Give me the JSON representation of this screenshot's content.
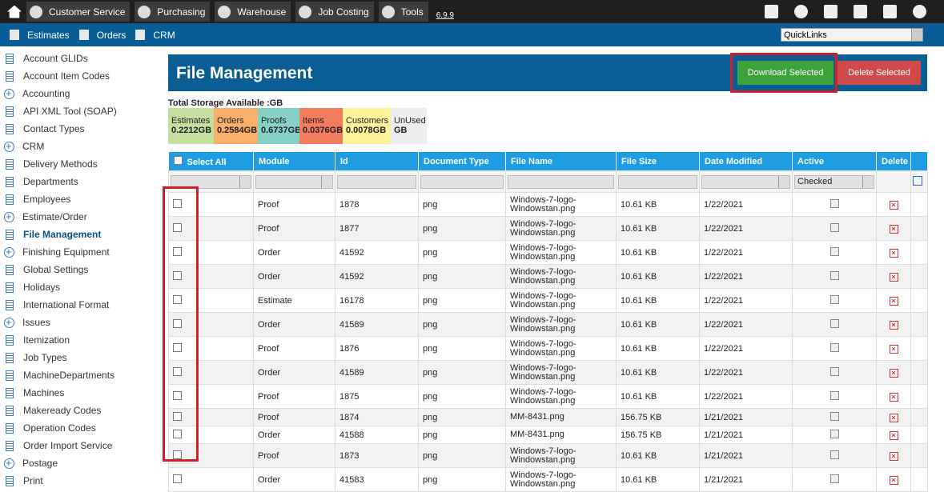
{
  "topnav": {
    "items": [
      "Customer Service",
      "Purchasing",
      "Warehouse",
      "Job Costing",
      "Tools"
    ],
    "version": "6.9.9"
  },
  "subnav": {
    "items": [
      "Estimates",
      "Orders",
      "CRM"
    ],
    "quicklinks": "QuickLinks"
  },
  "sidebar": {
    "items": [
      "Account GLIDs",
      "Account Item Codes",
      "Accounting",
      "API XML Tool (SOAP)",
      "Contact Types",
      "CRM",
      "Delivery Methods",
      "Departments",
      "Employees",
      "Estimate/Order",
      "File Management",
      "Finishing Equipment",
      "Global Settings",
      "Holidays",
      "International Format",
      "Issues",
      "Itemization",
      "Job Types",
      "MachineDepartments",
      "Machines",
      "Makeready Codes",
      "Operation Codes",
      "Order Import Service",
      "Postage",
      "Print"
    ]
  },
  "header": {
    "title": "File Management",
    "download": "Download Selected",
    "delete": "Delete Selected"
  },
  "storage": {
    "label": "Total Storage Available :GB",
    "cells": [
      {
        "name": "Estimates",
        "value": "0.2212GB"
      },
      {
        "name": "Orders",
        "value": "0.2584GB"
      },
      {
        "name": "Proofs",
        "value": "0.6737GB"
      },
      {
        "name": "Items",
        "value": "0.0376GB"
      },
      {
        "name": "Customers",
        "value": "0.0078GB"
      },
      {
        "name": "UnUsed",
        "value": "GB"
      }
    ]
  },
  "table": {
    "headers": [
      "Select All",
      "Module",
      "Id",
      "Document Type",
      "File Name",
      "File Size",
      "Date Modified",
      "Active",
      "Delete"
    ],
    "active_filter": "Checked",
    "rows": [
      [
        "Proof",
        "1878",
        "png",
        "Windows-7-logo-Windowstan.png",
        "10.61 KB",
        "1/22/2021"
      ],
      [
        "Proof",
        "1877",
        "png",
        "Windows-7-logo-Windowstan.png",
        "10.61 KB",
        "1/22/2021"
      ],
      [
        "Order",
        "41592",
        "png",
        "Windows-7-logo-Windowstan.png",
        "10.61 KB",
        "1/22/2021"
      ],
      [
        "Order",
        "41592",
        "png",
        "Windows-7-logo-Windowstan.png",
        "10.61 KB",
        "1/22/2021"
      ],
      [
        "Estimate",
        "16178",
        "png",
        "Windows-7-logo-Windowstan.png",
        "10.61 KB",
        "1/22/2021"
      ],
      [
        "Order",
        "41589",
        "png",
        "Windows-7-logo-Windowstan.png",
        "10.61 KB",
        "1/22/2021"
      ],
      [
        "Proof",
        "1876",
        "png",
        "Windows-7-logo-Windowstan.png",
        "10.61 KB",
        "1/22/2021"
      ],
      [
        "Order",
        "41589",
        "png",
        "Windows-7-logo-Windowstan.png",
        "10.61 KB",
        "1/22/2021"
      ],
      [
        "Proof",
        "1875",
        "png",
        "Windows-7-logo-Windowstan.png",
        "10.61 KB",
        "1/22/2021"
      ],
      [
        "Proof",
        "1874",
        "png",
        "MM-8431.png",
        "156.75 KB",
        "1/21/2021"
      ],
      [
        "Order",
        "41588",
        "png",
        "MM-8431.png",
        "156.75 KB",
        "1/21/2021"
      ],
      [
        "Proof",
        "1873",
        "png",
        "Windows-7-logo-Windowstan.png",
        "10.61 KB",
        "1/21/2021"
      ],
      [
        "Order",
        "41583",
        "png",
        "Windows-7-logo-Windowstan.png",
        "10.61 KB",
        "1/21/2021"
      ]
    ]
  }
}
